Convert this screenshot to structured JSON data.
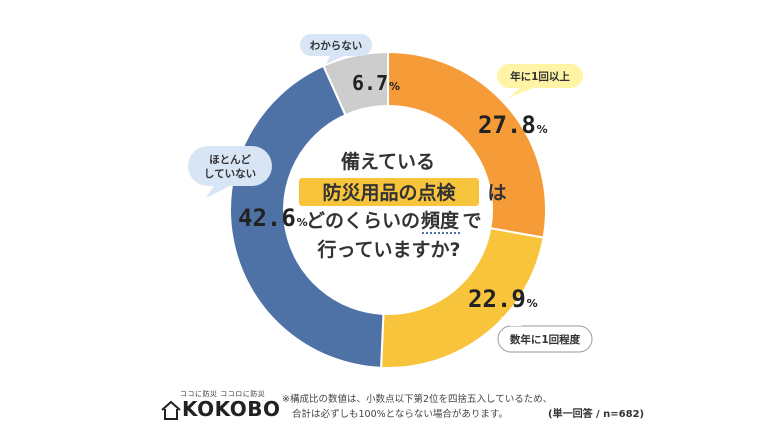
{
  "chart_data": {
    "type": "donut",
    "title_lines": [
      "備えている",
      "防災用品の点検",
      "は",
      "どのくらいの",
      "頻度",
      "で",
      "行っていますか?"
    ],
    "slices": [
      {
        "label": "年に1回以上",
        "value": 27.8,
        "value_text": "27.8",
        "color": "#F59B37"
      },
      {
        "label": "数年に1回程度",
        "value": 22.9,
        "value_text": "22.9",
        "color": "#F7C43C"
      },
      {
        "label": "ほとんどしていない",
        "label_lines": [
          "ほとんど",
          "していない"
        ],
        "value": 42.6,
        "value_text": "42.6",
        "color": "#4E72A6"
      },
      {
        "label": "わからない",
        "value": 6.7,
        "value_text": "6.7",
        "color": "#CDCDCD"
      }
    ],
    "unit": "%"
  },
  "footer": {
    "note_line1": "※構成比の数値は、小数点以下第2位を四捨五入しているため、",
    "note_line2": "合計は必ずしも100%とならない場合があります。",
    "sample": "(単一回答 / n=682)"
  },
  "logo": {
    "tagline": "ココに防災 ココロに防災",
    "brand": "KOKOBO"
  }
}
